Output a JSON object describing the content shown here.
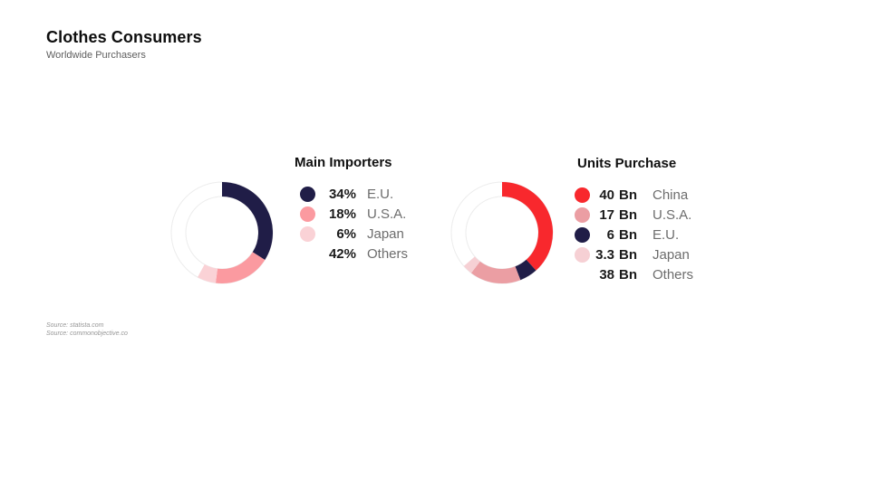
{
  "header": {
    "title": "Clothes Consumers",
    "subtitle": "Worldwide Purchasers"
  },
  "sources": [
    "Source: statista.com",
    "Source: commonobjective.co"
  ],
  "colors": {
    "navy": "#201d47",
    "pink": "#fb9aa0",
    "light_pink": "#fad2d6",
    "red": "#f8282d",
    "muted_pink": "#eb9ea3",
    "pale_pink": "#f6d0d4",
    "ring_outline": "#ececec",
    "empty_slice": "#ffffff"
  },
  "chart_data": [
    {
      "type": "donut",
      "title": "Main Importers",
      "unit": "%",
      "start_angle_deg": 0,
      "direction": "clockwise",
      "slices": [
        {
          "label": "E.U.",
          "value": 34,
          "value_text": "34%",
          "unit_text": "",
          "color": "#201d47"
        },
        {
          "label": "U.S.A.",
          "value": 18,
          "value_text": "18%",
          "unit_text": "",
          "color": "#fb9aa0"
        },
        {
          "label": "Japan",
          "value": 6,
          "value_text": "6%",
          "unit_text": "",
          "color": "#fad2d6"
        },
        {
          "label": "Others",
          "value": 42,
          "value_text": "42%",
          "unit_text": "",
          "color": "#ffffff"
        }
      ],
      "draw_order": [
        0,
        1,
        2,
        3
      ]
    },
    {
      "type": "donut",
      "title": "Units Purchase",
      "unit": "Bn",
      "start_angle_deg": 0,
      "direction": "clockwise",
      "slices": [
        {
          "label": "China",
          "value": 40,
          "value_text": "40",
          "unit_text": "Bn",
          "color": "#f8282d"
        },
        {
          "label": "U.S.A.",
          "value": 17,
          "value_text": "17",
          "unit_text": "Bn",
          "color": "#eb9ea3"
        },
        {
          "label": "E.U.",
          "value": 6,
          "value_text": "6",
          "unit_text": "Bn",
          "color": "#201d47"
        },
        {
          "label": "Japan",
          "value": 3.3,
          "value_text": "3.3",
          "unit_text": "Bn",
          "color": "#f6d0d4"
        },
        {
          "label": "Others",
          "value": 38,
          "value_text": "38",
          "unit_text": "Bn",
          "color": "#ffffff"
        }
      ],
      "draw_order": [
        0,
        2,
        1,
        3,
        4
      ]
    }
  ]
}
